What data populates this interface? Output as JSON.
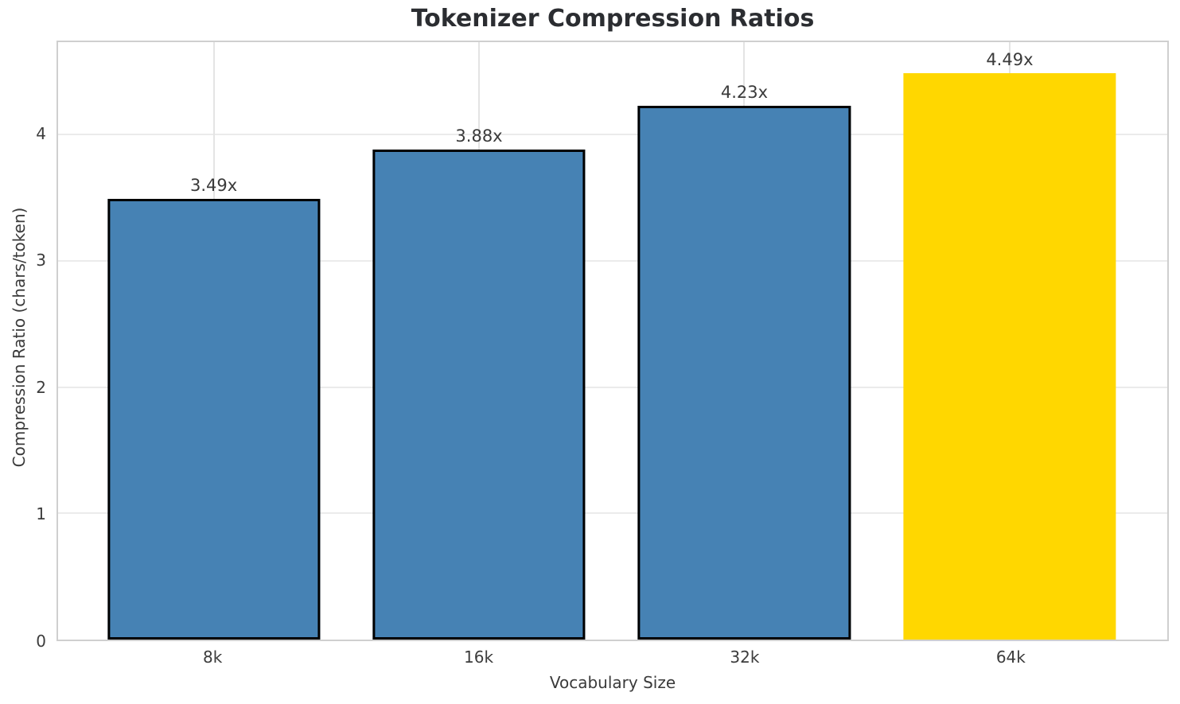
{
  "title": "Tokenizer Compression Ratios",
  "chart_data": {
    "type": "bar",
    "title": "Tokenizer Compression Ratios",
    "xlabel": "Vocabulary Size",
    "ylabel": "Compression Ratio (chars/token)",
    "categories": [
      "8k",
      "16k",
      "32k",
      "64k"
    ],
    "values": [
      3.49,
      3.88,
      4.23,
      4.49
    ],
    "bar_labels": [
      "3.49x",
      "3.88x",
      "4.23x",
      "4.49x"
    ],
    "bar_colors": [
      "#4682b4",
      "#4682b4",
      "#4682b4",
      "#ffd700"
    ],
    "bar_edge_colors": [
      "#000000",
      "#000000",
      "#000000",
      "none"
    ],
    "highlight_index": 3,
    "yticks": [
      0,
      1,
      2,
      3,
      4
    ],
    "ytick_labels": [
      "0",
      "1",
      "2",
      "3",
      "4"
    ],
    "ylim": [
      0,
      4.733
    ],
    "grid": true,
    "legend": "none"
  },
  "colors": {
    "bar_blue": "#4682b4",
    "bar_gold": "#ffd700",
    "bar_edge": "#000000",
    "spine": "#cfcfcf",
    "grid": "#ebebeb",
    "text": "#3a3a3a",
    "title_text": "#2b2d31"
  }
}
